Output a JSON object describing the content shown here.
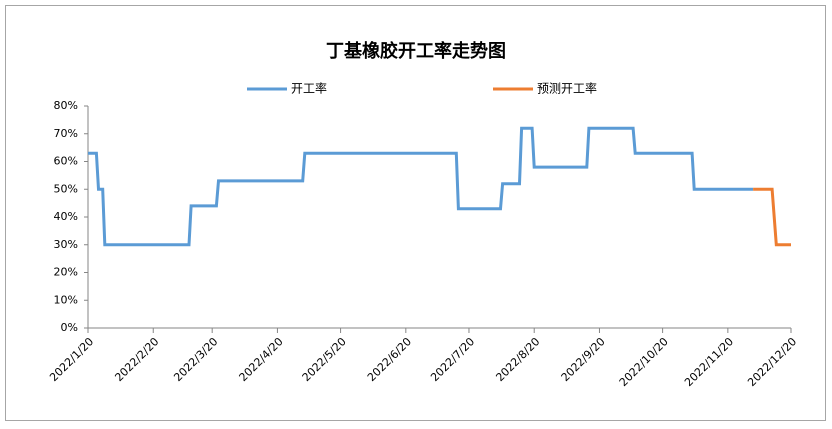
{
  "chart_data": {
    "type": "line",
    "title": "丁基橡胶开工率走势图",
    "xlim": [
      "2022/1/20",
      "2022/12/20"
    ],
    "xticks": [
      "2022/1/20",
      "2022/2/20",
      "2022/3/20",
      "2022/4/20",
      "2022/5/20",
      "2022/6/20",
      "2022/7/20",
      "2022/8/20",
      "2022/9/20",
      "2022/10/20",
      "2022/11/20",
      "2022/12/20"
    ],
    "ylim": [
      0,
      80
    ],
    "yticks": [
      {
        "value": 0,
        "label": "0%"
      },
      {
        "value": 10,
        "label": "10%"
      },
      {
        "value": 20,
        "label": "20%"
      },
      {
        "value": 30,
        "label": "30%"
      },
      {
        "value": 40,
        "label": "40%"
      },
      {
        "value": 50,
        "label": "50%"
      },
      {
        "value": 60,
        "label": "60%"
      },
      {
        "value": 70,
        "label": "70%"
      },
      {
        "value": 80,
        "label": "80%"
      }
    ],
    "legend": "top",
    "series": [
      {
        "name": "开工率",
        "color": "#5b9bd5",
        "x": [
          "2022/1/20",
          "2022/1/24",
          "2022/1/25",
          "2022/1/27",
          "2022/1/28",
          "2022/3/9",
          "2022/3/10",
          "2022/3/22",
          "2022/3/23",
          "2022/5/2",
          "2022/5/3",
          "2022/7/14",
          "2022/7/15",
          "2022/8/4",
          "2022/8/5",
          "2022/8/13",
          "2022/8/14",
          "2022/8/19",
          "2022/8/20",
          "2022/9/14",
          "2022/9/15",
          "2022/10/6",
          "2022/10/7",
          "2022/11/3",
          "2022/11/4",
          "2022/12/2"
        ],
        "values": [
          63,
          63,
          50,
          50,
          30,
          30,
          44,
          44,
          53,
          53,
          63,
          63,
          43,
          43,
          52,
          52,
          72,
          72,
          58,
          58,
          72,
          72,
          63,
          63,
          50,
          50
        ]
      },
      {
        "name": "预测开工率",
        "color": "#ed7d31",
        "x": [
          "2022/12/2",
          "2022/12/11",
          "2022/12/13",
          "2022/12/20"
        ],
        "values": [
          50,
          50,
          30,
          30
        ]
      }
    ]
  }
}
